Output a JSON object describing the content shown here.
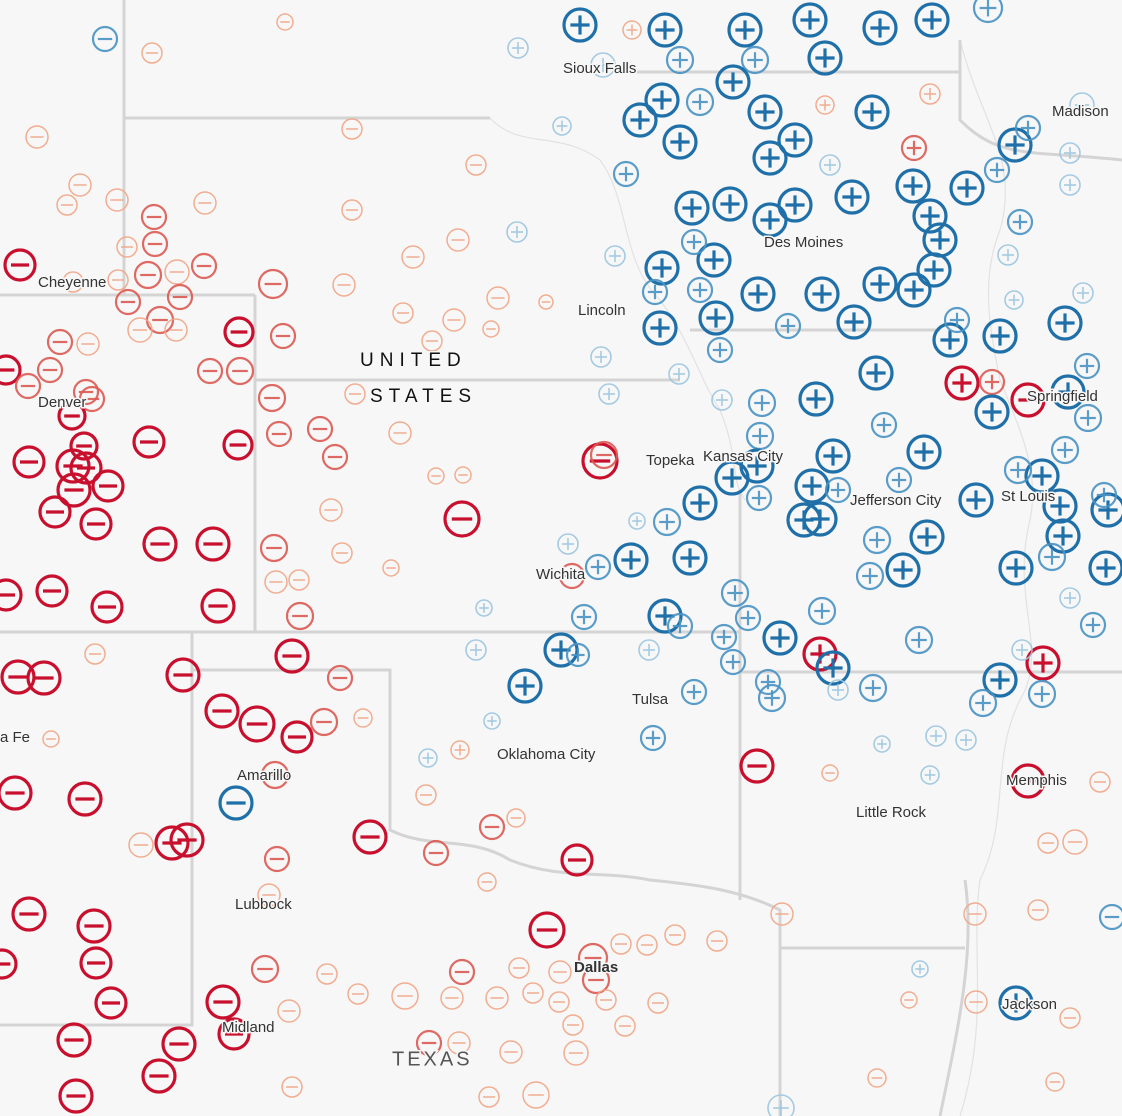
{
  "labels": {
    "cities": [
      "Sioux Falls",
      "Madison",
      "Cheyenne",
      "Des Moines",
      "Lincoln",
      "Denver",
      "Springfield",
      "Topeka",
      "Kansas City",
      "Jefferson City",
      "St Louis",
      "Wichita",
      "Tulsa",
      "Oklahoma City",
      "a Fe",
      "Amarillo",
      "Memphis",
      "Little Rock",
      "Lubbock",
      "Midland",
      "Dallas",
      "Jackson"
    ],
    "country": [
      "UNITED",
      "STATES"
    ],
    "state": "TEXAS"
  }
}
